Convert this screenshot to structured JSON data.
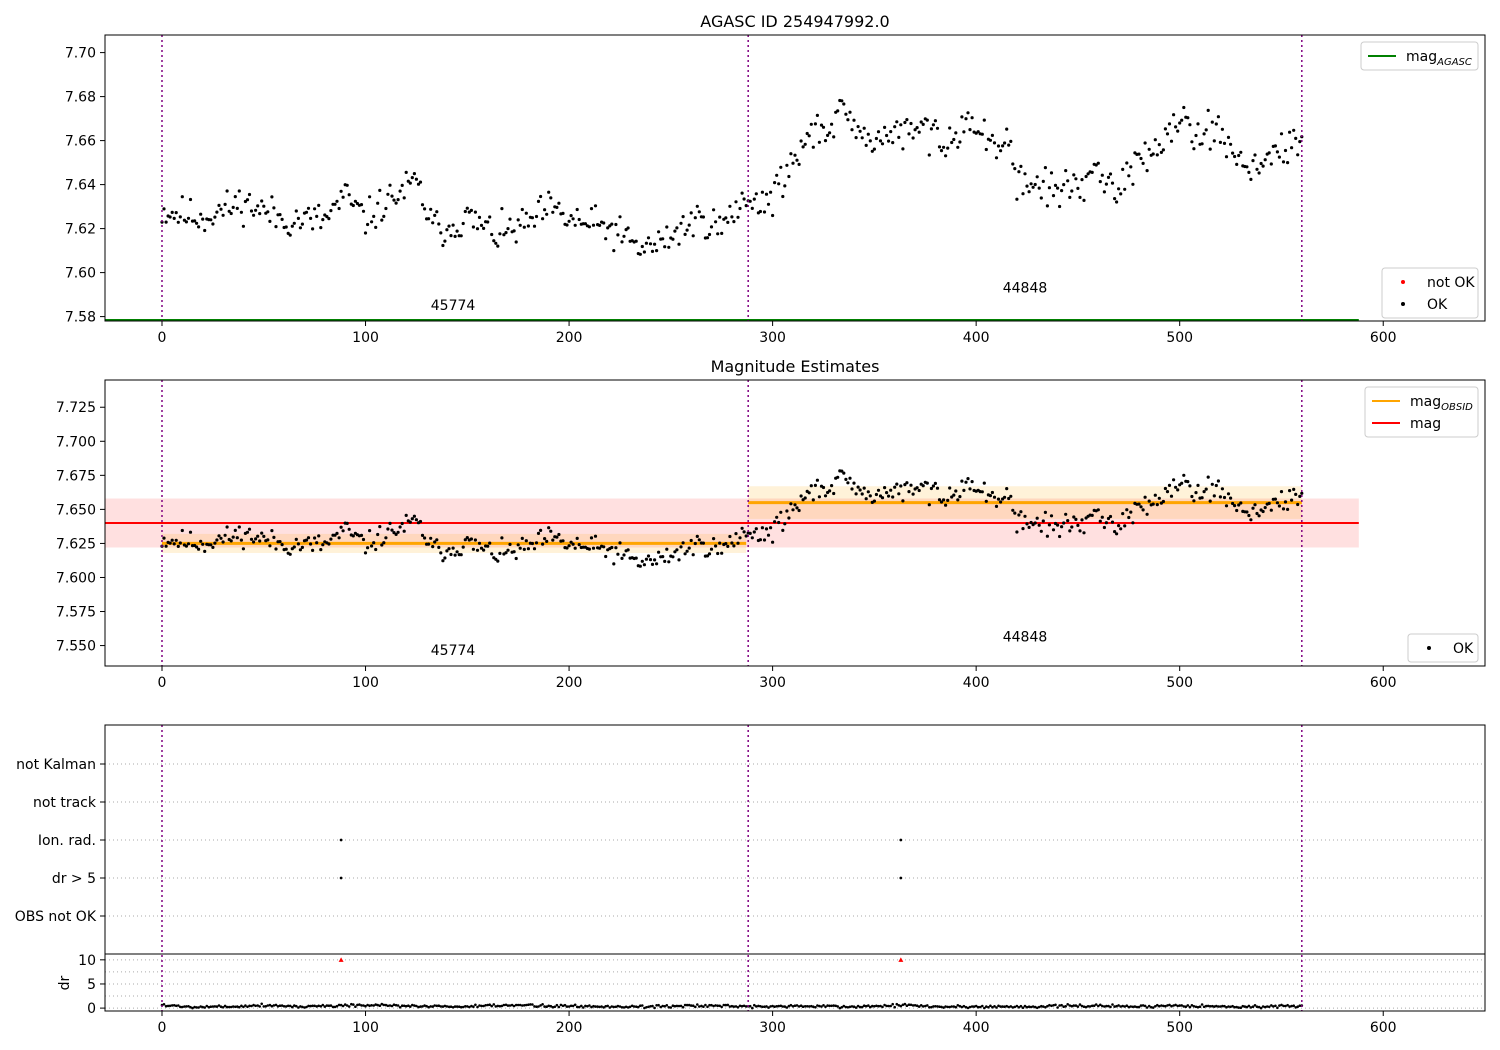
{
  "chart_data": [
    {
      "type": "scatter",
      "title": "AGASC ID 254947992.0",
      "xlim": [
        -28,
        650
      ],
      "ylim": [
        7.578,
        7.708
      ],
      "xticks": [
        0,
        100,
        200,
        300,
        400,
        500,
        600
      ],
      "yticks": [
        7.58,
        7.6,
        7.62,
        7.64,
        7.66,
        7.68,
        7.7
      ],
      "ytick_decimals": 2,
      "vlines": [
        0,
        288,
        560
      ],
      "legend_top": [
        {
          "label": "mag",
          "sub": "AGASC",
          "color": "#008000",
          "kind": "line"
        }
      ],
      "legend_bottom": [
        {
          "label": "not OK",
          "color": "#ff0000",
          "kind": "dot"
        },
        {
          "label": "OK",
          "color": "#000000",
          "kind": "dot"
        }
      ],
      "obsid_labels": [
        {
          "text": "45774",
          "x": 143,
          "y": 7.583
        },
        {
          "text": "44848",
          "x": 424,
          "y": 7.591
        }
      ],
      "agasc_mag": 7.578,
      "agasc_xrange": [
        -28,
        588
      ],
      "series": [
        {
          "name": "OK",
          "color": "#000000",
          "segments": [
            {
              "x0": 0,
              "x1": 287,
              "step": 1,
              "seed": 11,
              "noise": 0.004,
              "knots": [
                [
                  0,
                  7.628
                ],
                [
                  20,
                  7.625
                ],
                [
                  40,
                  7.632
                ],
                [
                  60,
                  7.624
                ],
                [
                  80,
                  7.624
                ],
                [
                  90,
                  7.635
                ],
                [
                  100,
                  7.624
                ],
                [
                  110,
                  7.632
                ],
                [
                  125,
                  7.641
                ],
                [
                  133,
                  7.621
                ],
                [
                  140,
                  7.62
                ],
                [
                  150,
                  7.625
                ],
                [
                  165,
                  7.617
                ],
                [
                  180,
                  7.622
                ],
                [
                  190,
                  7.629
                ],
                [
                  200,
                  7.624
                ],
                [
                  210,
                  7.622
                ],
                [
                  220,
                  7.62
                ],
                [
                  235,
                  7.611
                ],
                [
                  245,
                  7.613
                ],
                [
                  255,
                  7.62
                ],
                [
                  265,
                  7.625
                ],
                [
                  275,
                  7.62
                ],
                [
                  287,
                  7.634
                ]
              ]
            },
            {
              "x0": 288,
              "x1": 560,
              "step": 1,
              "seed": 29,
              "noise": 0.004,
              "knots": [
                [
                  288,
                  7.63
                ],
                [
                  300,
                  7.634
                ],
                [
                  310,
                  7.65
                ],
                [
                  320,
                  7.664
                ],
                [
                  335,
                  7.671
                ],
                [
                  345,
                  7.66
                ],
                [
                  360,
                  7.663
                ],
                [
                  375,
                  7.665
                ],
                [
                  385,
                  7.66
                ],
                [
                  395,
                  7.67
                ],
                [
                  405,
                  7.66
                ],
                [
                  415,
                  7.66
                ],
                [
                  420,
                  7.641
                ],
                [
                  430,
                  7.64
                ],
                [
                  440,
                  7.637
                ],
                [
                  455,
                  7.643
                ],
                [
                  470,
                  7.64
                ],
                [
                  480,
                  7.65
                ],
                [
                  490,
                  7.66
                ],
                [
                  500,
                  7.671
                ],
                [
                  510,
                  7.664
                ],
                [
                  520,
                  7.664
                ],
                [
                  530,
                  7.65
                ],
                [
                  540,
                  7.65
                ],
                [
                  560,
                  7.659
                ]
              ]
            }
          ]
        }
      ]
    },
    {
      "type": "scatter",
      "title": "Magnitude Estimates",
      "xlim": [
        -28,
        650
      ],
      "ylim": [
        7.535,
        7.745
      ],
      "xticks": [
        0,
        100,
        200,
        300,
        400,
        500,
        600
      ],
      "yticks": [
        7.55,
        7.575,
        7.6,
        7.625,
        7.65,
        7.675,
        7.7,
        7.725
      ],
      "ytick_decimals": 3,
      "vlines": [
        0,
        288,
        560
      ],
      "legend_top": [
        {
          "label": "mag",
          "sub": "OBSID",
          "color": "#ffa500",
          "kind": "line"
        },
        {
          "label": "mag",
          "sub": "",
          "color": "#ff0000",
          "kind": "line"
        }
      ],
      "legend_bottom": [
        {
          "label": "OK",
          "color": "#000000",
          "kind": "dot"
        }
      ],
      "obsid_labels": [
        {
          "text": "45774",
          "x": 143,
          "y": 7.543
        },
        {
          "text": "44848",
          "x": 424,
          "y": 7.553
        }
      ],
      "mag_line": {
        "value": 7.64,
        "band": [
          7.622,
          7.658
        ],
        "xrange": [
          -28,
          588
        ],
        "color": "#ff0000"
      },
      "obsid_mags": [
        {
          "x0": 0,
          "x1": 287,
          "value": 7.625,
          "band": [
            7.618,
            7.632
          ]
        },
        {
          "x0": 288,
          "x1": 560,
          "value": 7.655,
          "band": [
            7.643,
            7.667
          ]
        }
      ],
      "series": [
        {
          "name": "OK",
          "color": "#000000",
          "segments": [
            {
              "x0": 0,
              "x1": 287,
              "step": 1,
              "seed": 11,
              "noise": 0.004,
              "knots": [
                [
                  0,
                  7.628
                ],
                [
                  20,
                  7.625
                ],
                [
                  40,
                  7.632
                ],
                [
                  60,
                  7.624
                ],
                [
                  80,
                  7.624
                ],
                [
                  90,
                  7.635
                ],
                [
                  100,
                  7.624
                ],
                [
                  110,
                  7.632
                ],
                [
                  125,
                  7.641
                ],
                [
                  133,
                  7.621
                ],
                [
                  140,
                  7.62
                ],
                [
                  150,
                  7.625
                ],
                [
                  165,
                  7.617
                ],
                [
                  180,
                  7.622
                ],
                [
                  190,
                  7.629
                ],
                [
                  200,
                  7.624
                ],
                [
                  210,
                  7.622
                ],
                [
                  220,
                  7.62
                ],
                [
                  235,
                  7.611
                ],
                [
                  245,
                  7.613
                ],
                [
                  255,
                  7.62
                ],
                [
                  265,
                  7.625
                ],
                [
                  275,
                  7.62
                ],
                [
                  287,
                  7.634
                ]
              ]
            },
            {
              "x0": 288,
              "x1": 560,
              "step": 1,
              "seed": 29,
              "noise": 0.004,
              "knots": [
                [
                  288,
                  7.63
                ],
                [
                  300,
                  7.634
                ],
                [
                  310,
                  7.65
                ],
                [
                  320,
                  7.664
                ],
                [
                  335,
                  7.671
                ],
                [
                  345,
                  7.66
                ],
                [
                  360,
                  7.663
                ],
                [
                  375,
                  7.665
                ],
                [
                  385,
                  7.66
                ],
                [
                  395,
                  7.67
                ],
                [
                  405,
                  7.66
                ],
                [
                  415,
                  7.66
                ],
                [
                  420,
                  7.641
                ],
                [
                  430,
                  7.64
                ],
                [
                  440,
                  7.637
                ],
                [
                  455,
                  7.643
                ],
                [
                  470,
                  7.64
                ],
                [
                  480,
                  7.65
                ],
                [
                  490,
                  7.66
                ],
                [
                  500,
                  7.671
                ],
                [
                  510,
                  7.664
                ],
                [
                  520,
                  7.664
                ],
                [
                  530,
                  7.65
                ],
                [
                  540,
                  7.65
                ],
                [
                  560,
                  7.659
                ]
              ]
            }
          ]
        }
      ]
    },
    {
      "type": "scatter",
      "title": "",
      "xlim": [
        -28,
        650
      ],
      "xticks": [
        0,
        100,
        200,
        300,
        400,
        500,
        600
      ],
      "vlines": [
        0,
        288,
        560
      ],
      "flags": [
        "not Kalman",
        "not track",
        "Ion. rad.",
        "dr > 5",
        "OBS not OK"
      ],
      "flag_points": [
        {
          "flag": "Ion. rad.",
          "x": [
            88,
            363
          ]
        },
        {
          "flag": "dr > 5",
          "x": [
            88,
            363
          ]
        }
      ],
      "dr": {
        "ylabel": "dr",
        "ylim": [
          -0.6,
          11
        ],
        "yticks": [
          0,
          5,
          10
        ],
        "gridlines": [
          0,
          2.5,
          5,
          7.5,
          10
        ],
        "outliers": {
          "x": [
            88,
            363
          ],
          "y": [
            10,
            10
          ],
          "color": "#ff0000"
        },
        "segments": [
          {
            "x0": 0,
            "x1": 287,
            "step": 1,
            "seed": 5,
            "noise": 0.15,
            "knots": [
              [
                0,
                0.7
              ],
              [
                10,
                0.3
              ],
              [
                30,
                0.3
              ],
              [
                50,
                0.6
              ],
              [
                70,
                0.3
              ],
              [
                90,
                0.6
              ],
              [
                110,
                0.5
              ],
              [
                130,
                0.4
              ],
              [
                150,
                0.3
              ],
              [
                175,
                0.6
              ],
              [
                200,
                0.4
              ],
              [
                230,
                0.3
              ],
              [
                260,
                0.5
              ],
              [
                287,
                0.3
              ]
            ]
          },
          {
            "x0": 288,
            "x1": 560,
            "step": 1,
            "seed": 7,
            "noise": 0.15,
            "knots": [
              [
                288,
                0.3
              ],
              [
                310,
                0.4
              ],
              [
                340,
                0.3
              ],
              [
                365,
                0.6
              ],
              [
                380,
                0.3
              ],
              [
                420,
                0.3
              ],
              [
                440,
                0.4
              ],
              [
                460,
                0.5
              ],
              [
                480,
                0.3
              ],
              [
                500,
                0.6
              ],
              [
                520,
                0.3
              ],
              [
                540,
                0.3
              ],
              [
                560,
                0.3
              ]
            ]
          }
        ]
      }
    }
  ]
}
